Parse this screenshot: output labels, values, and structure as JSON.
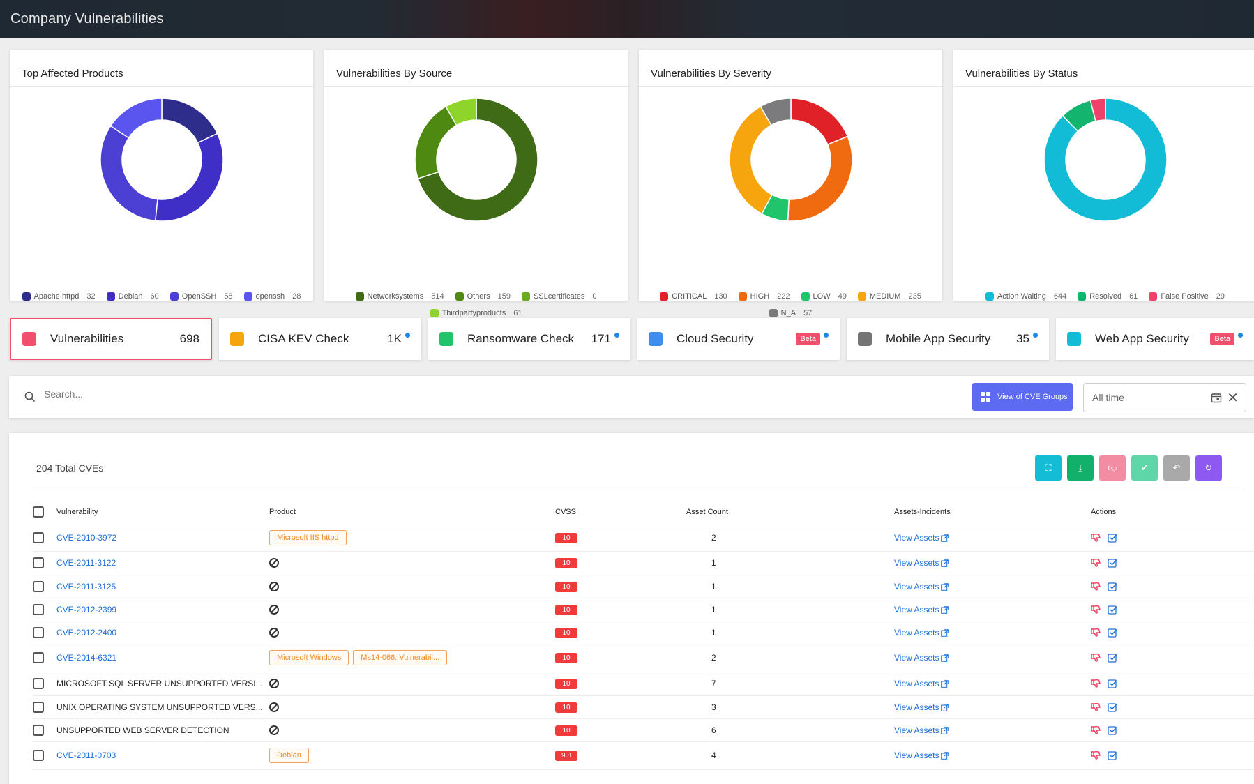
{
  "header": {
    "title": "Company Vulnerabilities"
  },
  "donuts": [
    {
      "title": "Top Affected Products",
      "items": [
        {
          "label": "Apache httpd",
          "value": 32,
          "color": "#2f2d8c"
        },
        {
          "label": "Debian",
          "value": 60,
          "color": "#3f2fc6"
        },
        {
          "label": "OpenSSH",
          "value": 58,
          "color": "#4b3fd4"
        },
        {
          "label": "openssh",
          "value": 28,
          "color": "#5b55f0"
        }
      ]
    },
    {
      "title": "Vulnerabilities By Source",
      "items": [
        {
          "label": "Networksystems",
          "value": 514,
          "color": "#3f6a16"
        },
        {
          "label": "Others",
          "value": 159,
          "color": "#4e8a12"
        },
        {
          "label": "SSLcertificates",
          "value": 0,
          "color": "#6aac1f"
        },
        {
          "label": "Thirdpartyproducts",
          "value": 61,
          "color": "#8fd42a"
        }
      ]
    },
    {
      "title": "Vulnerabilities By Severity",
      "items": [
        {
          "label": "CRITICAL",
          "value": 130,
          "color": "#e02127"
        },
        {
          "label": "HIGH",
          "value": 222,
          "color": "#f06a0f"
        },
        {
          "label": "LOW",
          "value": 49,
          "color": "#1fc46b"
        },
        {
          "label": "MEDIUM",
          "value": 235,
          "color": "#f7a50f"
        },
        {
          "label": "N_A",
          "value": 57,
          "color": "#7b7b7d"
        }
      ]
    },
    {
      "title": "Vulnerabilities By Status",
      "items": [
        {
          "label": "Action Waiting",
          "value": 644,
          "color": "#12bcd6"
        },
        {
          "label": "Resolved",
          "value": 61,
          "color": "#13b56e"
        },
        {
          "label": "False Positive",
          "value": 29,
          "color": "#f0416b"
        }
      ]
    }
  ],
  "tabs": [
    {
      "label": "Vulnerabilities",
      "count": "698",
      "color": "#f0506e",
      "info": false,
      "beta": false
    },
    {
      "label": "CISA KEV Check",
      "count": "1K",
      "color": "#f7a50f",
      "info": true,
      "beta": false
    },
    {
      "label": "Ransomware Check",
      "count": "171",
      "color": "#21c46b",
      "info": true,
      "beta": false
    },
    {
      "label": "Cloud Security",
      "count": "",
      "color": "#3d8cf0",
      "info": true,
      "beta": true
    },
    {
      "label": "Mobile App Security",
      "count": "35",
      "color": "#757575",
      "info": true,
      "beta": false
    },
    {
      "label": "Web App Security",
      "count": "",
      "color": "#12bcd6",
      "info": true,
      "beta": true
    }
  ],
  "beta_label": "Beta",
  "search": {
    "placeholder": "Search...",
    "cve_groups_label": "View of CVE Groups",
    "date_value": "All time"
  },
  "table": {
    "total_label": "204 Total CVEs",
    "columns": [
      "Vulnerability",
      "Product",
      "CVSS",
      "Asset Count",
      "Assets-Incidents",
      "Actions"
    ],
    "view_assets_label": "View Assets",
    "rows": [
      {
        "name": "CVE-2010-3972",
        "link": true,
        "products": [
          "Microsoft IIS httpd"
        ],
        "cvss": "10",
        "assets": "2"
      },
      {
        "name": "CVE-2011-3122",
        "link": true,
        "products": [],
        "cvss": "10",
        "assets": "1"
      },
      {
        "name": "CVE-2011-3125",
        "link": true,
        "products": [],
        "cvss": "10",
        "assets": "1"
      },
      {
        "name": "CVE-2012-2399",
        "link": true,
        "products": [],
        "cvss": "10",
        "assets": "1"
      },
      {
        "name": "CVE-2012-2400",
        "link": true,
        "products": [],
        "cvss": "10",
        "assets": "1"
      },
      {
        "name": "CVE-2014-6321",
        "link": true,
        "products": [
          "Microsoft Windows",
          "Ms14-066: Vulnerabil..."
        ],
        "cvss": "10",
        "assets": "2"
      },
      {
        "name": "MICROSOFT SQL SERVER UNSUPPORTED VERSI...",
        "link": false,
        "products": [],
        "cvss": "10",
        "assets": "7"
      },
      {
        "name": "UNIX OPERATING SYSTEM UNSUPPORTED VERS...",
        "link": false,
        "products": [],
        "cvss": "10",
        "assets": "3"
      },
      {
        "name": "UNSUPPORTED WEB SERVER DETECTION",
        "link": false,
        "products": [],
        "cvss": "10",
        "assets": "6"
      },
      {
        "name": "CVE-2011-0703",
        "link": true,
        "products": [
          "Debian"
        ],
        "cvss": "9.8",
        "assets": "4"
      }
    ]
  },
  "action_buttons": [
    {
      "icon": "scan-icon",
      "color": "#14bcd6"
    },
    {
      "icon": "download-icon",
      "color": "#12b06a"
    },
    {
      "icon": "thumbs-down-icon",
      "color": "#f28ca3"
    },
    {
      "icon": "check-icon",
      "color": "#5fd6a8"
    },
    {
      "icon": "undo-icon",
      "color": "#a9a9a9"
    },
    {
      "icon": "refresh-icon",
      "color": "#8e59f0"
    }
  ]
}
